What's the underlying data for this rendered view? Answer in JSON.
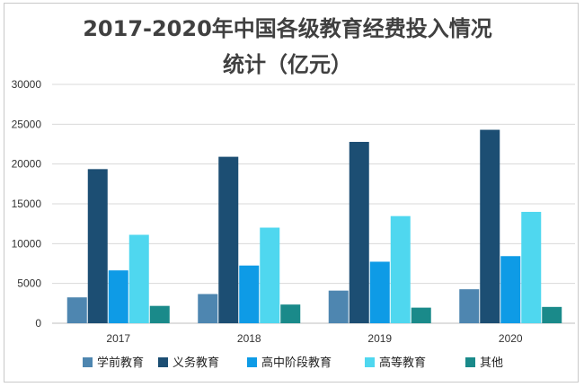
{
  "chart_data": {
    "type": "bar",
    "title_line1": "2017-2020年中国各级教育经费投入情况",
    "title_line2": "统计（亿元）",
    "categories": [
      "2017",
      "2018",
      "2019",
      "2020"
    ],
    "series": [
      {
        "name": "学前教育",
        "values": [
          3250,
          3670,
          4100,
          4270
        ],
        "color": "#4e86b0"
      },
      {
        "name": "义务教育",
        "values": [
          19360,
          20910,
          22780,
          24300
        ],
        "color": "#1c4e73"
      },
      {
        "name": "高中阶段教育",
        "values": [
          6640,
          7250,
          7730,
          8430
        ],
        "color": "#0e9be6"
      },
      {
        "name": "高等教育",
        "values": [
          11110,
          12010,
          13460,
          13990
        ],
        "color": "#4fd7ef"
      },
      {
        "name": "其他",
        "values": [
          2180,
          2350,
          1960,
          2050
        ],
        "color": "#1a8a8a"
      }
    ],
    "ylim": [
      0,
      30000
    ],
    "yticks": [
      "0",
      "5000",
      "10000",
      "15000",
      "20000",
      "25000",
      "30000"
    ],
    "grid": true,
    "legend_position": "bottom"
  }
}
